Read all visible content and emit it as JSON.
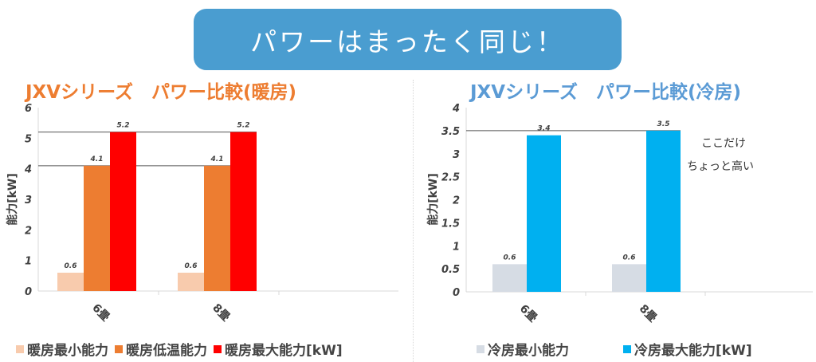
{
  "banner": {
    "text": "パワーはまったく同じ！"
  },
  "colors": {
    "banner": "#4a9dd0",
    "heating_title": "#ed7d31",
    "cooling_title": "#5b9bd5",
    "heat_min": "#f8cbad",
    "heat_low": "#ed7d31",
    "heat_max": "#ff0000",
    "cool_min": "#d6dce4",
    "cool_max": "#00b0f0"
  },
  "annotation": {
    "line1": "ここだけ",
    "line2": "ちょっと高い"
  },
  "chart_data": [
    {
      "type": "bar",
      "title": "JXVシリーズ　パワー比較(暖房)",
      "ylabel": "能力[kW]",
      "xlabel": "",
      "categories": [
        "6畳",
        "8畳"
      ],
      "ylim": [
        0,
        6
      ],
      "yticks": [
        "0",
        "1",
        "2",
        "3",
        "4",
        "5",
        "6"
      ],
      "grid": false,
      "legend_position": "bottom",
      "series": [
        {
          "name": "暖房最小能力",
          "values": [
            0.6,
            0.6
          ],
          "labels": [
            "0.6",
            "0.6"
          ],
          "color": "#f8cbad"
        },
        {
          "name": "暖房低温能力",
          "values": [
            4.1,
            4.1
          ],
          "labels": [
            "4.1",
            "4.1"
          ],
          "color": "#ed7d31"
        },
        {
          "name": "暖房最大能力[kW]",
          "values": [
            5.2,
            5.2
          ],
          "labels": [
            "5.2",
            "5.2"
          ],
          "color": "#ff0000"
        }
      ],
      "reference_lines": [
        4.1,
        5.2
      ]
    },
    {
      "type": "bar",
      "title": "JXVシリーズ　パワー比較(冷房)",
      "ylabel": "能力[kW]",
      "xlabel": "",
      "categories": [
        "6畳",
        "8畳"
      ],
      "ylim": [
        0,
        4
      ],
      "yticks": [
        "0",
        "0.5",
        "1",
        "1.5",
        "2",
        "2.5",
        "3",
        "3.5",
        "4"
      ],
      "grid": false,
      "legend_position": "bottom",
      "series": [
        {
          "name": "冷房最小能力",
          "values": [
            0.6,
            0.6
          ],
          "labels": [
            "0.6",
            "0.6"
          ],
          "color": "#d6dce4"
        },
        {
          "name": "冷房最大能力[kW]",
          "values": [
            3.4,
            3.5
          ],
          "labels": [
            "3.4",
            "3.5"
          ],
          "color": "#00b0f0"
        }
      ],
      "reference_lines": [
        3.5
      ]
    }
  ]
}
